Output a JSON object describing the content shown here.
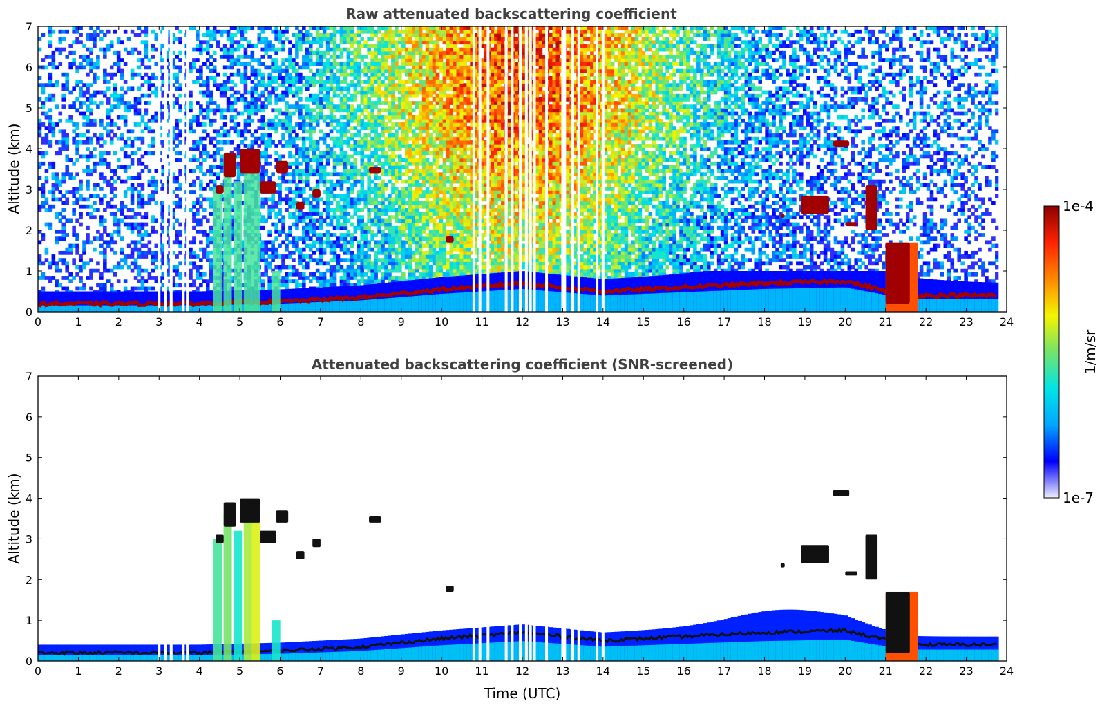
{
  "chart_data": [
    {
      "type": "heatmap",
      "title": "Raw attenuated backscattering coefficient",
      "xlabel": "",
      "ylabel": "Altitude (km)",
      "xlim": [
        0,
        24
      ],
      "ylim": [
        0,
        7
      ],
      "x_ticks": [
        "0",
        "1",
        "2",
        "3",
        "4",
        "5",
        "6",
        "7",
        "8",
        "9",
        "10",
        "11",
        "12",
        "13",
        "14",
        "15",
        "16",
        "17",
        "18",
        "19",
        "20",
        "21",
        "22",
        "23",
        "24"
      ],
      "y_ticks": [
        "0",
        "1",
        "2",
        "3",
        "4",
        "5",
        "6",
        "7"
      ],
      "data_gaps_utc": [
        3.0,
        3.15,
        3.3,
        3.6,
        3.7,
        10.8,
        10.95,
        11.15,
        11.6,
        11.75,
        11.95,
        12.1,
        12.2,
        12.3,
        12.6,
        13.0,
        13.05,
        13.25,
        13.4,
        13.85,
        14.0
      ],
      "boundary_layer_top_km": [
        {
          "t": 0,
          "z": 0.2
        },
        {
          "t": 4,
          "z": 0.2
        },
        {
          "t": 6,
          "z": 0.25
        },
        {
          "t": 8,
          "z": 0.35
        },
        {
          "t": 10,
          "z": 0.55
        },
        {
          "t": 12,
          "z": 0.7
        },
        {
          "t": 14,
          "z": 0.5
        },
        {
          "t": 16,
          "z": 0.6
        },
        {
          "t": 18,
          "z": 0.7
        },
        {
          "t": 20,
          "z": 0.75
        },
        {
          "t": 21.5,
          "z": 0.4
        },
        {
          "t": 23.8,
          "z": 0.4
        }
      ],
      "cloud_features": [
        {
          "t0": 4.4,
          "t1": 4.6,
          "z0": 2.9,
          "z1": 3.1
        },
        {
          "t0": 4.6,
          "t1": 4.9,
          "z0": 3.3,
          "z1": 3.9
        },
        {
          "t0": 5.0,
          "t1": 5.5,
          "z0": 3.4,
          "z1": 4.0
        },
        {
          "t0": 5.5,
          "t1": 5.9,
          "z0": 2.9,
          "z1": 3.2
        },
        {
          "t0": 5.9,
          "t1": 6.2,
          "z0": 3.4,
          "z1": 3.7
        },
        {
          "t0": 6.4,
          "t1": 6.6,
          "z0": 2.5,
          "z1": 2.7
        },
        {
          "t0": 6.8,
          "t1": 7.0,
          "z0": 2.8,
          "z1": 3.0
        },
        {
          "t0": 8.2,
          "t1": 8.5,
          "z0": 3.4,
          "z1": 3.55
        },
        {
          "t0": 10.1,
          "t1": 10.3,
          "z0": 1.7,
          "z1": 1.85
        },
        {
          "t0": 18.4,
          "t1": 18.5,
          "z0": 2.3,
          "z1": 2.4
        },
        {
          "t0": 18.9,
          "t1": 19.6,
          "z0": 2.4,
          "z1": 2.85
        },
        {
          "t0": 19.7,
          "t1": 20.1,
          "z0": 4.05,
          "z1": 4.2
        },
        {
          "t0": 20.0,
          "t1": 20.3,
          "z0": 2.1,
          "z1": 2.2
        },
        {
          "t0": 20.5,
          "t1": 20.8,
          "z0": 2.0,
          "z1": 3.1
        },
        {
          "t0": 21.0,
          "t1": 21.6,
          "z0": 0.2,
          "z1": 1.7
        }
      ]
    },
    {
      "type": "heatmap",
      "title": "Attenuated backscattering coefficient (SNR-screened)",
      "xlabel": "Time (UTC)",
      "ylabel": "Altitude (km)",
      "xlim": [
        0,
        24
      ],
      "ylim": [
        0,
        7
      ],
      "x_ticks": [
        "0",
        "1",
        "2",
        "3",
        "4",
        "5",
        "6",
        "7",
        "8",
        "9",
        "10",
        "11",
        "12",
        "13",
        "14",
        "15",
        "16",
        "17",
        "18",
        "19",
        "20",
        "21",
        "22",
        "23",
        "24"
      ],
      "y_ticks": [
        "0",
        "1",
        "2",
        "3",
        "4",
        "5",
        "6",
        "7"
      ]
    }
  ],
  "colorbar": {
    "label": "1/m/sr",
    "max_label": "1e-4",
    "min_label": "1e-7",
    "colors": [
      "#eeeefc",
      "#0000ff",
      "#00a6ff",
      "#00e5e5",
      "#74e36a",
      "#f5f500",
      "#ff8800",
      "#ff2200",
      "#8b0000"
    ]
  }
}
